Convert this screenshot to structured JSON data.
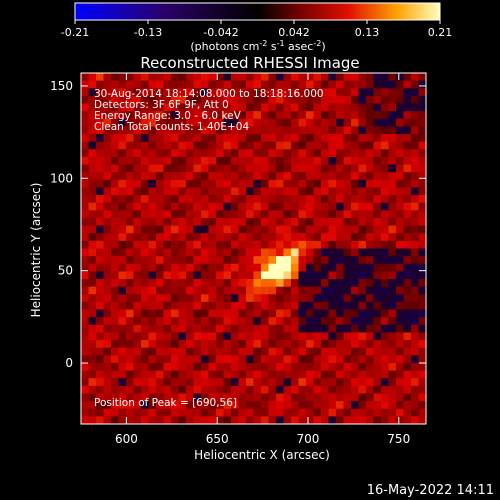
{
  "chart_data": {
    "type": "heatmap",
    "title": "Reconstructed RHESSI Image",
    "xlabel": "Heliocentric X (arcsec)",
    "ylabel": "Heliocentric Y (arcsec)",
    "xlim": [
      575,
      765
    ],
    "ylim": [
      -33,
      157
    ],
    "x_ticks": [
      600,
      650,
      700,
      750
    ],
    "y_ticks": [
      0,
      50,
      100,
      150
    ],
    "colorbar": {
      "range": [
        -0.21,
        0.21
      ],
      "ticks": [
        "-0.21",
        "-0.13",
        "-0.042",
        "0.042",
        "0.13",
        "0.21"
      ],
      "unit_parts": [
        "(photons cm",
        "-2",
        " s",
        "-1",
        " asec",
        "-2",
        ")"
      ]
    },
    "annotations": [
      "30-Aug-2014 18:14:08.000 to 18:18:16.000",
      "Detectors: 3F 6F 9F, Att 0",
      "Energy Range: 3.0 - 6.0 keV",
      "Clean     Total counts: 1.40E+04"
    ],
    "peak_label": "Position of Peak = [690,56]",
    "peak": {
      "x": 690,
      "y": 56,
      "value": 0.21
    },
    "source": {
      "x": 684,
      "y": 52,
      "sigma_major": 11,
      "sigma_minor": 5.5,
      "angle_deg": 35
    },
    "footer_date": "16-May-2022 14:11"
  }
}
